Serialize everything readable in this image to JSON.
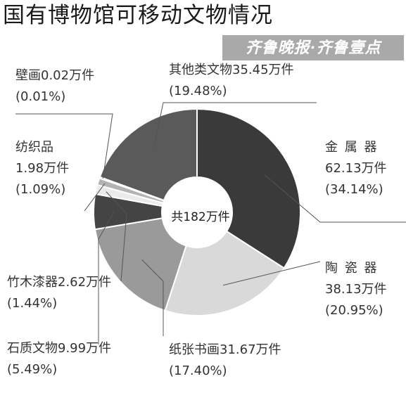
{
  "chart_data": {
    "type": "pie",
    "variant": "donut",
    "title": "国有博物馆可移动文物情况",
    "center_text": "共182万件",
    "slices": [
      {
        "name": "金 属 器",
        "value_text": "62.13万件",
        "pct_text": "(34.14%)",
        "value": 62.13,
        "percent": 34.14,
        "color": "#3a3a3a"
      },
      {
        "name": "陶 瓷 器",
        "value_text": "38.13万件",
        "pct_text": "(20.95%)",
        "value": 38.13,
        "percent": 20.95,
        "color": "#d9d9d9"
      },
      {
        "name": "纸张书画",
        "value_text": "31.67万件",
        "pct_text": "(17.40%)",
        "value": 31.67,
        "percent": 17.4,
        "color": "#9a9a9a"
      },
      {
        "name": "石质文物",
        "value_text": "9.99万件",
        "pct_text": "(5.49%)",
        "value": 9.99,
        "percent": 5.49,
        "color": "#444444"
      },
      {
        "name": "竹木漆器",
        "value_text": "2.62万件",
        "pct_text": "(1.44%)",
        "value": 2.62,
        "percent": 1.44,
        "color": "#ebebeb"
      },
      {
        "name": "纺织品",
        "value_text": "1.98万件",
        "pct_text": "(1.09%)",
        "value": 1.98,
        "percent": 1.09,
        "color": "#b3b3b3"
      },
      {
        "name": "壁画",
        "value_text": "0.02万件",
        "pct_text": "(0.01%)",
        "value": 0.02,
        "percent": 0.01,
        "color": "#555555"
      },
      {
        "name": "其他类文物",
        "value_text": "35.45万件",
        "pct_text": "(19.48%)",
        "value": 35.45,
        "percent": 19.48,
        "color": "#5a5a5a"
      }
    ]
  },
  "watermark": "齐鲁晚报·齐鲁壹点"
}
